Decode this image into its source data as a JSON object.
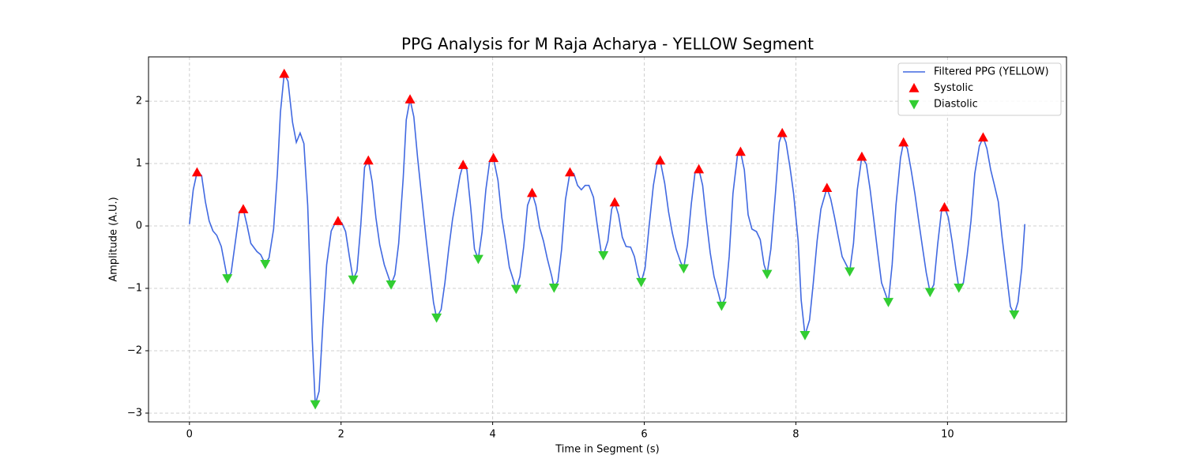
{
  "chart_data": {
    "type": "line",
    "title": "PPG Analysis for M Raja Acharya - YELLOW Segment",
    "xlabel": "Time in Segment (s)",
    "ylabel": "Amplitude (A.U.)",
    "xlim": [
      -0.54,
      11.57
    ],
    "ylim": [
      -3.14,
      2.71
    ],
    "xticks": [
      0,
      2,
      4,
      6,
      8,
      10
    ],
    "yticks": [
      {
        "value": -3,
        "label": "−3"
      },
      {
        "value": -2,
        "label": "−2"
      },
      {
        "value": -1,
        "label": "−1"
      },
      0,
      1,
      2
    ],
    "grid": true,
    "legend": "upper right",
    "series": [
      {
        "name": "Filtered PPG (YELLOW)",
        "color": "#4169e1",
        "kind": "line",
        "x": [
          0,
          0.05,
          0.1,
          0.16,
          0.21,
          0.26,
          0.31,
          0.36,
          0.42,
          0.5,
          0.55,
          0.66,
          0.71,
          0.76,
          0.81,
          0.89,
          0.94,
          1.0,
          1.05,
          1.11,
          1.16,
          1.2,
          1.25,
          1.3,
          1.36,
          1.41,
          1.46,
          1.51,
          1.56,
          1.62,
          1.66,
          1.71,
          1.76,
          1.81,
          1.87,
          1.92,
          1.96,
          2.01,
          2.06,
          2.11,
          2.16,
          2.21,
          2.26,
          2.31,
          2.36,
          2.41,
          2.46,
          2.51,
          2.57,
          2.66,
          2.71,
          2.76,
          2.82,
          2.86,
          2.91,
          2.96,
          3.01,
          3.07,
          3.12,
          3.17,
          3.22,
          3.26,
          3.32,
          3.37,
          3.42,
          3.47,
          3.52,
          3.57,
          3.61,
          3.66,
          3.71,
          3.76,
          3.81,
          3.86,
          3.91,
          3.96,
          4.01,
          4.07,
          4.12,
          4.17,
          4.22,
          4.31,
          4.36,
          4.41,
          4.46,
          4.52,
          4.57,
          4.62,
          4.67,
          4.72,
          4.78,
          4.81,
          4.86,
          4.91,
          4.96,
          5.02,
          5.07,
          5.12,
          5.17,
          5.22,
          5.27,
          5.33,
          5.38,
          5.43,
          5.46,
          5.52,
          5.57,
          5.61,
          5.66,
          5.71,
          5.76,
          5.82,
          5.87,
          5.92,
          5.96,
          6.01,
          6.06,
          6.12,
          6.17,
          6.21,
          6.27,
          6.32,
          6.37,
          6.42,
          6.48,
          6.52,
          6.57,
          6.62,
          6.67,
          6.72,
          6.77,
          6.82,
          6.87,
          6.92,
          6.98,
          7.02,
          7.07,
          7.12,
          7.17,
          7.23,
          7.27,
          7.32,
          7.37,
          7.42,
          7.48,
          7.53,
          7.58,
          7.62,
          7.67,
          7.73,
          7.78,
          7.82,
          7.87,
          7.92,
          7.97,
          8.03,
          8.07,
          8.12,
          8.18,
          8.23,
          8.28,
          8.33,
          8.41,
          8.46,
          8.51,
          8.56,
          8.61,
          8.71,
          8.76,
          8.81,
          8.87,
          8.93,
          8.98,
          9.03,
          9.08,
          9.13,
          9.22,
          9.27,
          9.32,
          9.38,
          9.42,
          9.47,
          9.52,
          9.57,
          9.62,
          9.67,
          9.72,
          9.77,
          9.82,
          9.87,
          9.92,
          9.96,
          10.01,
          10.06,
          10.11,
          10.15,
          10.21,
          10.26,
          10.31,
          10.36,
          10.42,
          10.47,
          10.52,
          10.57,
          10.62,
          10.67,
          10.72,
          10.78,
          10.83,
          10.88,
          10.93,
          10.98,
          11.02
        ],
        "values": [
          0.03,
          0.58,
          0.86,
          0.81,
          0.39,
          0.08,
          -0.08,
          -0.15,
          -0.33,
          -0.84,
          -0.75,
          0.23,
          0.27,
          0.01,
          -0.28,
          -0.41,
          -0.46,
          -0.61,
          -0.51,
          -0.05,
          0.84,
          1.82,
          2.44,
          2.32,
          1.66,
          1.34,
          1.49,
          1.32,
          0.33,
          -1.82,
          -2.86,
          -2.65,
          -1.57,
          -0.62,
          -0.08,
          0.04,
          0.08,
          0.05,
          -0.09,
          -0.49,
          -0.86,
          -0.72,
          0.01,
          0.94,
          1.05,
          0.71,
          0.13,
          -0.3,
          -0.62,
          -0.94,
          -0.78,
          -0.28,
          0.77,
          1.7,
          2.03,
          1.75,
          1.09,
          0.39,
          -0.18,
          -0.72,
          -1.23,
          -1.47,
          -1.34,
          -0.91,
          -0.37,
          0.1,
          0.46,
          0.81,
          0.98,
          0.9,
          0.3,
          -0.37,
          -0.53,
          -0.1,
          0.58,
          1.03,
          1.09,
          0.73,
          0.14,
          -0.24,
          -0.66,
          -1.01,
          -0.81,
          -0.33,
          0.33,
          0.53,
          0.33,
          -0.03,
          -0.24,
          -0.52,
          -0.81,
          -0.99,
          -0.89,
          -0.37,
          0.42,
          0.86,
          0.84,
          0.65,
          0.58,
          0.65,
          0.65,
          0.46,
          0.01,
          -0.41,
          -0.47,
          -0.24,
          0.27,
          0.38,
          0.18,
          -0.18,
          -0.33,
          -0.34,
          -0.49,
          -0.78,
          -0.9,
          -0.68,
          -0.05,
          0.65,
          1.01,
          1.05,
          0.68,
          0.23,
          -0.11,
          -0.37,
          -0.58,
          -0.68,
          -0.3,
          0.35,
          0.86,
          0.91,
          0.65,
          0.08,
          -0.43,
          -0.81,
          -1.09,
          -1.28,
          -1.15,
          -0.49,
          0.52,
          1.14,
          1.19,
          0.9,
          0.18,
          -0.05,
          -0.09,
          -0.22,
          -0.62,
          -0.77,
          -0.37,
          0.52,
          1.34,
          1.49,
          1.34,
          0.96,
          0.52,
          -0.24,
          -1.19,
          -1.75,
          -1.51,
          -0.91,
          -0.24,
          0.27,
          0.61,
          0.43,
          0.14,
          -0.18,
          -0.49,
          -0.73,
          -0.28,
          0.58,
          1.11,
          0.99,
          0.58,
          0.08,
          -0.43,
          -0.91,
          -1.22,
          -0.62,
          0.33,
          1.09,
          1.34,
          1.24,
          0.9,
          0.52,
          0.08,
          -0.34,
          -0.75,
          -1.06,
          -0.94,
          -0.3,
          0.23,
          0.3,
          0.14,
          -0.24,
          -0.68,
          -0.99,
          -0.91,
          -0.46,
          0.08,
          0.84,
          1.28,
          1.42,
          1.24,
          0.9,
          0.65,
          0.39,
          -0.18,
          -0.78,
          -1.29,
          -1.42,
          -1.22,
          -0.68,
          0.03
        ]
      },
      {
        "name": "Systolic",
        "color": "#ff0000",
        "kind": "scatter",
        "marker": "^",
        "x": [
          0.1,
          0.71,
          1.25,
          1.96,
          2.36,
          2.91,
          3.61,
          4.01,
          4.52,
          5.02,
          5.61,
          6.21,
          6.72,
          7.27,
          7.82,
          8.41,
          8.87,
          9.42,
          9.96,
          10.47
        ],
        "values": [
          0.86,
          0.27,
          2.44,
          0.08,
          1.05,
          2.03,
          0.98,
          1.09,
          0.53,
          0.86,
          0.38,
          1.05,
          0.91,
          1.19,
          1.49,
          0.61,
          1.11,
          1.34,
          0.3,
          1.42
        ]
      },
      {
        "name": "Diastolic",
        "color": "#32cd32",
        "kind": "scatter",
        "marker": "v",
        "x": [
          0.5,
          1.0,
          1.66,
          2.16,
          2.66,
          3.26,
          3.81,
          4.31,
          4.81,
          5.46,
          5.96,
          6.52,
          7.02,
          7.62,
          8.12,
          8.71,
          9.22,
          9.77,
          10.15,
          10.88
        ],
        "values": [
          -0.84,
          -0.61,
          -2.86,
          -0.86,
          -0.94,
          -1.47,
          -0.53,
          -1.01,
          -0.99,
          -0.47,
          -0.9,
          -0.68,
          -1.28,
          -0.77,
          -1.75,
          -0.73,
          -1.22,
          -1.06,
          -0.99,
          -1.42
        ]
      }
    ]
  }
}
